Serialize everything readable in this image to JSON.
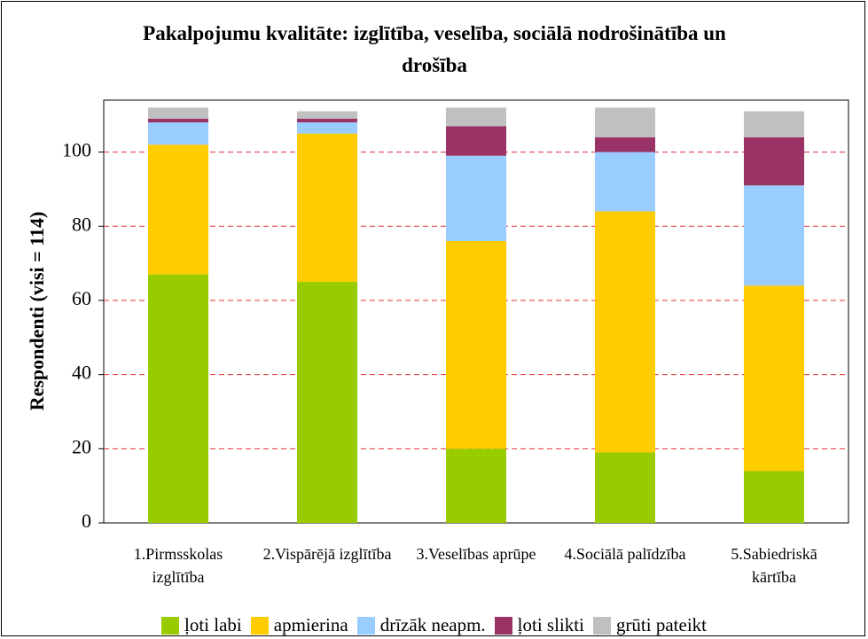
{
  "chart_data": {
    "type": "stacked_bar",
    "title": "Pakalpojumu kvalitāte: izglītība, veselība, sociālā nodrošinātība un drošība",
    "y_label": "Respondenti (visi = 114)",
    "categories": [
      "1.Pirmsskolas izglītība",
      "2.Vispārējā izglītība",
      "3.Veselības aprūpe",
      "4.Sociālā palīdzība",
      "5.Sabiedriskā kārtība"
    ],
    "series": [
      {
        "name": "ļoti labi",
        "color": "#99cc00",
        "values": [
          67,
          65,
          20,
          19,
          14
        ]
      },
      {
        "name": "apmierina",
        "color": "#ffcc00",
        "values": [
          35,
          40,
          56,
          65,
          50
        ]
      },
      {
        "name": "drīzāk neapm.",
        "color": "#99ccff",
        "values": [
          6,
          3,
          23,
          16,
          27
        ]
      },
      {
        "name": "ļoti slikti",
        "color": "#993366",
        "values": [
          1,
          1,
          8,
          4,
          13
        ]
      },
      {
        "name": "grūti pateikt",
        "color": "#c0c0c0",
        "values": [
          3,
          2,
          5,
          8,
          7
        ]
      }
    ],
    "ylim": [
      0,
      114
    ],
    "yticks": [
      0,
      20,
      40,
      60,
      80,
      100
    ],
    "grid": true,
    "legend": "bottom"
  }
}
